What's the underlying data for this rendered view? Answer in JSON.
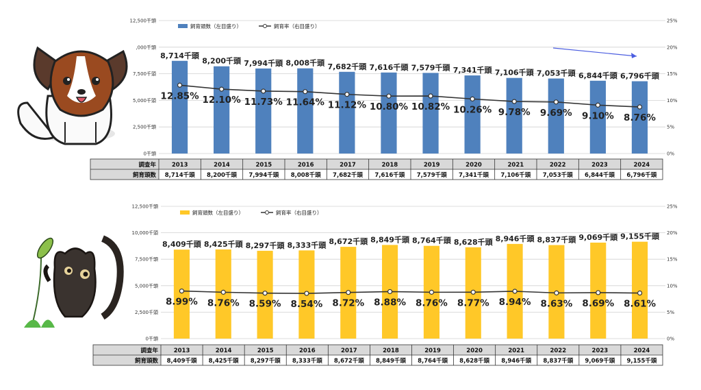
{
  "charts": [
    {
      "chart_data": {
        "type": "bar",
        "categories": [
          "2013",
          "2014",
          "2015",
          "2016",
          "2017",
          "2018",
          "2019",
          "2020",
          "2021",
          "2022",
          "2023",
          "2024"
        ],
        "series": [
          {
            "name": "飼育頭数（左目盛り）",
            "type": "bar",
            "axis": "left",
            "values": [
              8714,
              8200,
              7994,
              8008,
              7682,
              7616,
              7579,
              7341,
              7106,
              7053,
              6844,
              6796
            ],
            "labels": [
              "8,714千頭",
              "8,200千頭",
              "7,994千頭",
              "8,008千頭",
              "7,682千頭",
              "7,616千頭",
              "7,579千頭",
              "7,341千頭",
              "7,106千頭",
              "7,053千頭",
              "6,844千頭",
              "6,796千頭"
            ]
          },
          {
            "name": "飼育率（右目盛り）",
            "type": "line",
            "axis": "right",
            "values": [
              12.85,
              12.1,
              11.73,
              11.64,
              11.12,
              10.8,
              10.82,
              10.26,
              9.78,
              9.69,
              9.1,
              8.76
            ],
            "labels": [
              "12.85%",
              "12.10%",
              "11.73%",
              "11.64%",
              "11.12%",
              "10.80%",
              "10.82%",
              "10.26%",
              "9.78%",
              "9.69%",
              "9.10%",
              "8.76%"
            ]
          }
        ],
        "left_axis": {
          "ylim": [
            0,
            12500
          ],
          "ticks": [
            "0千頭",
            "2,500千頭",
            "5,000千頭",
            "7,500千頭",
            ",000千頭",
            "12,500千頭"
          ]
        },
        "right_axis": {
          "ylim": [
            0,
            25
          ],
          "ticks": [
            "0%",
            "5%",
            "10%",
            "15%",
            "20%",
            "25%"
          ]
        },
        "bar_color": "#4f81bd",
        "annotation": "arrow"
      },
      "table": {
        "row1_header": "調査年",
        "row2_header": "飼育頭数"
      },
      "illustration": "papillon-dog"
    },
    {
      "chart_data": {
        "type": "bar",
        "categories": [
          "2013",
          "2014",
          "2015",
          "2016",
          "2017",
          "2018",
          "2019",
          "2020",
          "2021",
          "2022",
          "2023",
          "2024"
        ],
        "series": [
          {
            "name": "飼育頭数（左目盛り）",
            "type": "bar",
            "axis": "left",
            "values": [
              8409,
              8425,
              8297,
              8333,
              8672,
              8849,
              8764,
              8628,
              8946,
              8837,
              9069,
              9155
            ],
            "labels": [
              "8,409千頭",
              "8,425千頭",
              "8,297千頭",
              "8,333千頭",
              "8,672千頭",
              "8,849千頭",
              "8,764千頭",
              "8,628千頭",
              "8,946千頭",
              "8,837千頭",
              "9,069千頭",
              "9,155千頭"
            ]
          },
          {
            "name": "飼育率（右目盛り）",
            "type": "line",
            "axis": "right",
            "values": [
              8.99,
              8.76,
              8.59,
              8.54,
              8.72,
              8.88,
              8.76,
              8.77,
              8.94,
              8.63,
              8.69,
              8.61
            ],
            "labels": [
              "8.99%",
              "8.76%",
              "8.59%",
              "8.54%",
              "8.72%",
              "8.88%",
              "8.76%",
              "8.77%",
              "8.94%",
              "8.63%",
              "8.69%",
              "8.61%"
            ]
          }
        ],
        "left_axis": {
          "ylim": [
            0,
            12500
          ],
          "ticks": [
            "0千頭",
            "2,500千頭",
            "5,000千頭",
            "7,500千頭",
            "10,000千頭",
            "12,500千頭"
          ]
        },
        "right_axis": {
          "ylim": [
            0,
            25
          ],
          "ticks": [
            "0%",
            "5%",
            "10%",
            "15%",
            "20%",
            "25%"
          ]
        },
        "bar_color": "#ffc828"
      },
      "table": {
        "row1_header": "調査年",
        "row2_header": "飼育頭数"
      },
      "illustration": "black-cat"
    }
  ],
  "colors": {
    "line": "#333333",
    "grid": "#d0d0d0",
    "table_header_bg": "#d9d9d9",
    "arrow": "#4c5ee0"
  }
}
